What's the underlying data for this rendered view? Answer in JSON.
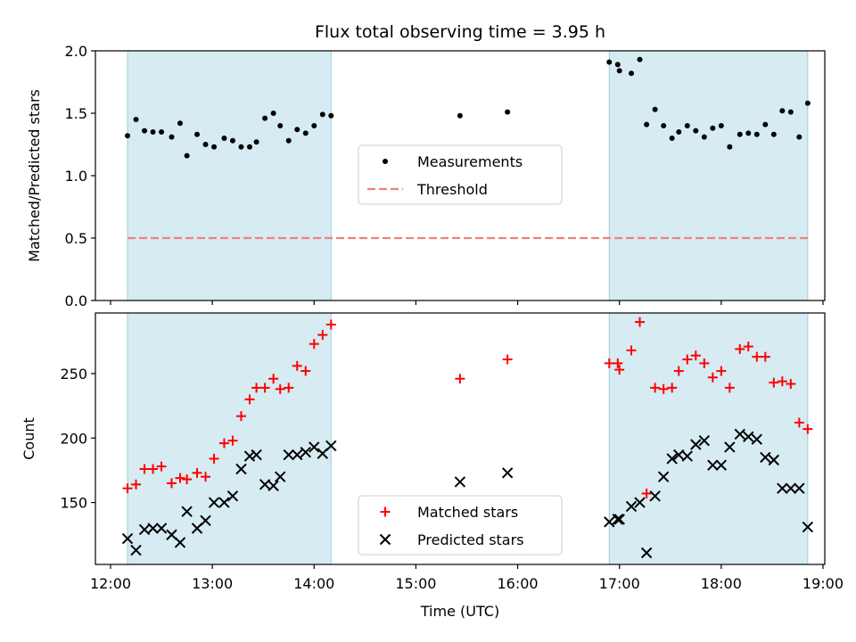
{
  "chart_data": [
    {
      "type": "scatter",
      "title": "Flux total observing time = 3.95 h",
      "ylabel": "Matched/Predicted stars",
      "xlabel": "",
      "x_range": [
        "12:00",
        "19:10"
      ],
      "ylim": [
        0,
        2.0
      ],
      "yticks": [
        "0.0",
        "0.5",
        "1.0",
        "1.5",
        "2.0"
      ],
      "legend": {
        "placement": "center",
        "entries": [
          "Measurements",
          "Threshold"
        ]
      },
      "shaded_ranges": [
        [
          "12:10",
          "14:10"
        ],
        [
          "16:54",
          "18:51"
        ]
      ],
      "threshold": {
        "y": 0.5,
        "x_from": "12:10",
        "x_to": "18:51",
        "color": "#f08080"
      },
      "series": [
        {
          "name": "Measurements",
          "marker": "dot",
          "color": "#000000",
          "points": [
            [
              "12:10",
              1.32
            ],
            [
              "12:15",
              1.45
            ],
            [
              "12:20",
              1.36
            ],
            [
              "12:25",
              1.35
            ],
            [
              "12:30",
              1.35
            ],
            [
              "12:36",
              1.31
            ],
            [
              "12:41",
              1.42
            ],
            [
              "12:45",
              1.16
            ],
            [
              "12:51",
              1.33
            ],
            [
              "12:56",
              1.25
            ],
            [
              "13:01",
              1.23
            ],
            [
              "13:07",
              1.3
            ],
            [
              "13:12",
              1.28
            ],
            [
              "13:17",
              1.23
            ],
            [
              "13:22",
              1.23
            ],
            [
              "13:26",
              1.27
            ],
            [
              "13:31",
              1.46
            ],
            [
              "13:36",
              1.5
            ],
            [
              "13:40",
              1.4
            ],
            [
              "13:45",
              1.28
            ],
            [
              "13:50",
              1.37
            ],
            [
              "13:55",
              1.34
            ],
            [
              "14:00",
              1.4
            ],
            [
              "14:05",
              1.49
            ],
            [
              "14:10",
              1.48
            ],
            [
              "15:26",
              1.48
            ],
            [
              "15:54",
              1.51
            ],
            [
              "16:54",
              1.91
            ],
            [
              "16:59",
              1.89
            ],
            [
              "17:00",
              1.84
            ],
            [
              "17:07",
              1.82
            ],
            [
              "17:12",
              1.93
            ],
            [
              "17:16",
              1.41
            ],
            [
              "17:21",
              1.53
            ],
            [
              "17:26",
              1.4
            ],
            [
              "17:31",
              1.3
            ],
            [
              "17:35",
              1.35
            ],
            [
              "17:40",
              1.4
            ],
            [
              "17:45",
              1.36
            ],
            [
              "17:50",
              1.31
            ],
            [
              "17:55",
              1.38
            ],
            [
              "18:00",
              1.4
            ],
            [
              "18:05",
              1.23
            ],
            [
              "18:11",
              1.33
            ],
            [
              "18:16",
              1.34
            ],
            [
              "18:21",
              1.33
            ],
            [
              "18:26",
              1.41
            ],
            [
              "18:31",
              1.33
            ],
            [
              "18:36",
              1.52
            ],
            [
              "18:41",
              1.51
            ],
            [
              "18:46",
              1.31
            ],
            [
              "18:51",
              1.58
            ]
          ]
        }
      ]
    },
    {
      "type": "scatter",
      "title": "",
      "ylabel": "Count",
      "xlabel": "Time (UTC)",
      "x_range": [
        "12:00",
        "19:10"
      ],
      "ylim": [
        102,
        297
      ],
      "yticks": [
        "150",
        "200",
        "250"
      ],
      "xticks": [
        "12:00",
        "13:00",
        "14:00",
        "15:00",
        "16:00",
        "17:00",
        "18:00",
        "19:00"
      ],
      "legend": {
        "placement": "lower-center",
        "entries": [
          "Matched stars",
          "Predicted stars"
        ]
      },
      "shaded_ranges": [
        [
          "12:10",
          "14:10"
        ],
        [
          "16:54",
          "18:51"
        ]
      ],
      "series": [
        {
          "name": "Matched stars",
          "marker": "plus",
          "color": "#ff0000",
          "points": [
            [
              "12:10",
              161
            ],
            [
              "12:15",
              164
            ],
            [
              "12:20",
              176
            ],
            [
              "12:25",
              176
            ],
            [
              "12:30",
              178
            ],
            [
              "12:36",
              165
            ],
            [
              "12:41",
              169
            ],
            [
              "12:45",
              168
            ],
            [
              "12:51",
              173
            ],
            [
              "12:56",
              170
            ],
            [
              "13:01",
              184
            ],
            [
              "13:07",
              196
            ],
            [
              "13:12",
              198
            ],
            [
              "13:17",
              217
            ],
            [
              "13:22",
              230
            ],
            [
              "13:26",
              239
            ],
            [
              "13:31",
              239
            ],
            [
              "13:36",
              246
            ],
            [
              "13:40",
              238
            ],
            [
              "13:45",
              239
            ],
            [
              "13:50",
              256
            ],
            [
              "13:55",
              252
            ],
            [
              "14:00",
              273
            ],
            [
              "14:05",
              280
            ],
            [
              "14:10",
              288
            ],
            [
              "15:26",
              246
            ],
            [
              "15:54",
              261
            ],
            [
              "16:54",
              258
            ],
            [
              "16:59",
              258
            ],
            [
              "17:00",
              253
            ],
            [
              "17:07",
              268
            ],
            [
              "17:12",
              290
            ],
            [
              "17:16",
              157
            ],
            [
              "17:21",
              239
            ],
            [
              "17:26",
              238
            ],
            [
              "17:31",
              239
            ],
            [
              "17:35",
              252
            ],
            [
              "17:40",
              261
            ],
            [
              "17:45",
              264
            ],
            [
              "17:50",
              258
            ],
            [
              "17:55",
              247
            ],
            [
              "18:00",
              252
            ],
            [
              "18:05",
              239
            ],
            [
              "18:11",
              269
            ],
            [
              "18:16",
              271
            ],
            [
              "18:21",
              263
            ],
            [
              "18:26",
              263
            ],
            [
              "18:31",
              243
            ],
            [
              "18:36",
              244
            ],
            [
              "18:41",
              242
            ],
            [
              "18:46",
              212
            ],
            [
              "18:51",
              207
            ]
          ]
        },
        {
          "name": "Predicted stars",
          "marker": "x",
          "color": "#000000",
          "points": [
            [
              "12:10",
              122
            ],
            [
              "12:15",
              113
            ],
            [
              "12:20",
              129
            ],
            [
              "12:25",
              130
            ],
            [
              "12:30",
              130
            ],
            [
              "12:36",
              125
            ],
            [
              "12:41",
              119
            ],
            [
              "12:45",
              143
            ],
            [
              "12:51",
              130
            ],
            [
              "12:56",
              136
            ],
            [
              "13:01",
              150
            ],
            [
              "13:07",
              150
            ],
            [
              "13:12",
              155
            ],
            [
              "13:17",
              176
            ],
            [
              "13:22",
              186
            ],
            [
              "13:26",
              187
            ],
            [
              "13:31",
              164
            ],
            [
              "13:36",
              163
            ],
            [
              "13:40",
              170
            ],
            [
              "13:45",
              187
            ],
            [
              "13:50",
              187
            ],
            [
              "13:55",
              189
            ],
            [
              "14:00",
              193
            ],
            [
              "14:05",
              188
            ],
            [
              "14:10",
              194
            ],
            [
              "15:26",
              166
            ],
            [
              "15:54",
              173
            ],
            [
              "16:54",
              135
            ],
            [
              "16:59",
              137
            ],
            [
              "17:00",
              137
            ],
            [
              "17:07",
              147
            ],
            [
              "17:12",
              150
            ],
            [
              "17:16",
              111
            ],
            [
              "17:21",
              155
            ],
            [
              "17:26",
              170
            ],
            [
              "17:31",
              184
            ],
            [
              "17:35",
              187
            ],
            [
              "17:40",
              186
            ],
            [
              "17:45",
              195
            ],
            [
              "17:50",
              198
            ],
            [
              "17:55",
              179
            ],
            [
              "18:00",
              179
            ],
            [
              "18:05",
              193
            ],
            [
              "18:11",
              203
            ],
            [
              "18:16",
              201
            ],
            [
              "18:21",
              199
            ],
            [
              "18:26",
              185
            ],
            [
              "18:31",
              183
            ],
            [
              "18:36",
              161
            ],
            [
              "18:41",
              161
            ],
            [
              "18:46",
              161
            ],
            [
              "18:51",
              131
            ]
          ]
        }
      ]
    }
  ]
}
